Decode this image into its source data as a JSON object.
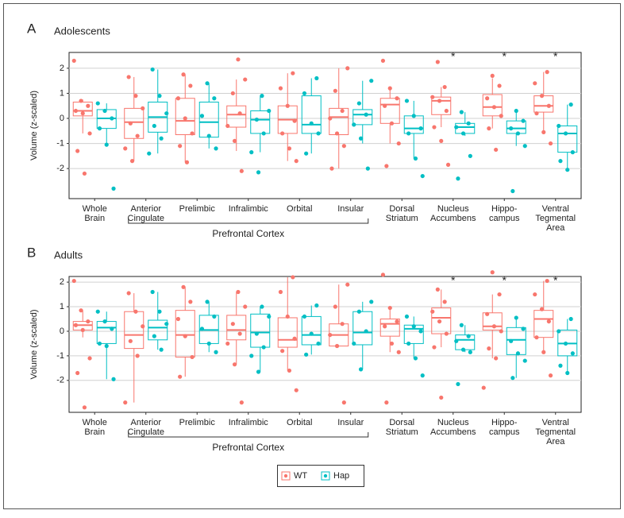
{
  "chart_data": [
    {
      "type": "box",
      "panel": "A",
      "title": "Adolescents",
      "ylabel": "Volume (z-scaled)",
      "categories": [
        [
          "Whole",
          "Brain"
        ],
        [
          "Anterior",
          "Cingulate"
        ],
        [
          "Prelimbic"
        ],
        [
          "Infralimbic"
        ],
        [
          "Orbital"
        ],
        [
          "Insular"
        ],
        [
          "Dorsal",
          "Striatum"
        ],
        [
          "Nucleus",
          "Accumbens"
        ],
        [
          "Hippo-",
          "campus"
        ],
        [
          "Ventral",
          "Tegmental",
          "Area"
        ]
      ],
      "group": {
        "label": "Prefrontal Cortex",
        "from": 1,
        "to": 5
      },
      "significance": [
        null,
        null,
        null,
        null,
        null,
        null,
        null,
        "*",
        "*",
        "*"
      ],
      "ylim": [
        -3.2,
        2.63
      ],
      "yticks": [
        -2,
        -1,
        0,
        1,
        2
      ],
      "grid": true,
      "series": [
        {
          "name": "WT",
          "color": "#f8766d",
          "boxes": [
            {
              "min": -0.6,
              "q1": 0.1,
              "median": 0.3,
              "q3": 0.65,
              "max": 0.75
            },
            {
              "min": -1.7,
              "q1": -0.8,
              "median": -0.15,
              "q3": 0.4,
              "max": 1.65
            },
            {
              "min": -1.75,
              "q1": -0.65,
              "median": -0.1,
              "q3": 0.8,
              "max": 1.75
            },
            {
              "min": -1.3,
              "q1": -0.35,
              "median": 0.15,
              "q3": 0.5,
              "max": 1.55
            },
            {
              "min": -1.7,
              "q1": -0.6,
              "median": -0.05,
              "q3": 0.5,
              "max": 1.8
            },
            {
              "min": -2.0,
              "q1": -0.65,
              "median": 0.05,
              "q3": 0.4,
              "max": 2.0
            },
            {
              "min": -1.0,
              "q1": -0.2,
              "median": 0.55,
              "q3": 0.8,
              "max": 1.2
            },
            {
              "min": -0.35,
              "q1": 0.15,
              "median": 0.7,
              "q3": 0.85,
              "max": 1.25
            },
            {
              "min": -0.4,
              "q1": 0.1,
              "median": 0.45,
              "q3": 0.95,
              "max": 1.6
            },
            {
              "min": -0.55,
              "q1": 0.25,
              "median": 0.5,
              "q3": 0.9,
              "max": 1.85
            }
          ],
          "points": [
            [
              2.3,
              0.7,
              0.5,
              0.3,
              0.2,
              -0.6,
              -1.3,
              -2.2
            ],
            [
              1.65,
              0.9,
              0.4,
              -0.2,
              -0.7,
              -1.2,
              -1.7
            ],
            [
              1.75,
              1.3,
              0.8,
              0.0,
              -0.6,
              -1.1,
              -1.75
            ],
            [
              2.35,
              1.55,
              1.0,
              0.2,
              -0.3,
              -0.9,
              -2.1
            ],
            [
              1.8,
              1.2,
              0.5,
              -0.1,
              -0.6,
              -1.2,
              -1.7
            ],
            [
              2.0,
              1.1,
              0.3,
              0.0,
              -0.6,
              -1.1,
              -2.0
            ],
            [
              2.3,
              1.2,
              0.8,
              0.5,
              -0.2,
              -1.0,
              -1.9
            ],
            [
              2.25,
              1.25,
              0.85,
              0.7,
              0.3,
              -0.35,
              -0.9,
              -1.85
            ],
            [
              1.7,
              1.3,
              0.8,
              0.45,
              0.1,
              -0.4,
              -1.25
            ],
            [
              1.85,
              1.4,
              0.9,
              0.5,
              0.2,
              -0.55,
              -1.0
            ]
          ]
        },
        {
          "name": "Hap",
          "color": "#00bfc4",
          "boxes": [
            {
              "min": -1.05,
              "q1": -0.4,
              "median": 0.0,
              "q3": 0.35,
              "max": 0.6
            },
            {
              "min": -1.4,
              "q1": -0.55,
              "median": 0.05,
              "q3": 0.65,
              "max": 1.95
            },
            {
              "min": -1.2,
              "q1": -0.75,
              "median": -0.15,
              "q3": 0.65,
              "max": 1.4
            },
            {
              "min": -1.35,
              "q1": -0.6,
              "median": -0.05,
              "q3": 0.3,
              "max": 0.9
            },
            {
              "min": -1.4,
              "q1": -0.6,
              "median": -0.25,
              "q3": 0.9,
              "max": 1.6
            },
            {
              "min": -1.0,
              "q1": -0.25,
              "median": 0.15,
              "q3": 0.35,
              "max": 1.5
            },
            {
              "min": -1.6,
              "q1": -0.6,
              "median": -0.4,
              "q3": 0.1,
              "max": 0.7
            },
            {
              "min": -0.7,
              "q1": -0.6,
              "median": -0.35,
              "q3": -0.2,
              "max": 0.25
            },
            {
              "min": -1.1,
              "q1": -0.6,
              "median": -0.4,
              "q3": -0.1,
              "max": 0.3
            },
            {
              "min": -2.05,
              "q1": -1.35,
              "median": -0.6,
              "q3": -0.3,
              "max": 0.55
            }
          ],
          "points": [
            [
              0.6,
              0.3,
              0.0,
              -0.4,
              -1.05,
              -2.8
            ],
            [
              1.95,
              0.9,
              0.2,
              -0.3,
              -0.8,
              -1.4
            ],
            [
              1.4,
              0.8,
              0.1,
              -0.7,
              -1.2
            ],
            [
              0.9,
              0.3,
              -0.05,
              -0.6,
              -1.35,
              -2.15
            ],
            [
              1.6,
              1.0,
              -0.2,
              -0.6,
              -1.4
            ],
            [
              1.5,
              0.6,
              0.15,
              -0.25,
              -0.8,
              -2.0
            ],
            [
              0.7,
              0.1,
              -0.4,
              -0.6,
              -1.6,
              -2.3
            ],
            [
              0.25,
              -0.2,
              -0.35,
              -0.6,
              -1.5,
              -2.4
            ],
            [
              0.3,
              -0.1,
              -0.4,
              -0.6,
              -1.1,
              -2.9
            ],
            [
              0.55,
              -0.3,
              -0.6,
              -1.35,
              -1.7,
              -2.05
            ]
          ]
        }
      ]
    },
    {
      "type": "box",
      "panel": "B",
      "title": "Adults",
      "ylabel": "Volume (z-scaled)",
      "categories": [
        [
          "Whole",
          "Brain"
        ],
        [
          "Anterior",
          "Cingulate"
        ],
        [
          "Prelimbic"
        ],
        [
          "Infralimbic"
        ],
        [
          "Orbital"
        ],
        [
          "Insular"
        ],
        [
          "Dorsal",
          "Striatum"
        ],
        [
          "Nucleus",
          "Accumbens"
        ],
        [
          "Hippo-",
          "campus"
        ],
        [
          "Ventral",
          "Tegmental",
          "Area"
        ]
      ],
      "group": {
        "label": "Prefrontal Cortex",
        "from": 1,
        "to": 5
      },
      "significance": [
        null,
        null,
        null,
        null,
        null,
        null,
        null,
        "*",
        "*",
        "*"
      ],
      "ylim": [
        -3.3,
        2.23
      ],
      "yticks": [
        -2,
        -1,
        0,
        1,
        2
      ],
      "grid": true,
      "series": [
        {
          "name": "WT",
          "color": "#f8766d",
          "boxes": [
            {
              "min": -0.25,
              "q1": 0.05,
              "median": 0.25,
              "q3": 0.4,
              "max": 0.85
            },
            {
              "min": -2.9,
              "q1": -0.7,
              "median": -0.15,
              "q3": 0.8,
              "max": 1.55
            },
            {
              "min": -1.85,
              "q1": -1.05,
              "median": -0.15,
              "q3": 0.85,
              "max": 1.8
            },
            {
              "min": -1.35,
              "q1": -0.35,
              "median": 0.05,
              "q3": 0.65,
              "max": 1.6
            },
            {
              "min": -1.6,
              "q1": -0.65,
              "median": -0.35,
              "q3": 0.55,
              "max": 2.2
            },
            {
              "min": -0.6,
              "q1": -0.6,
              "median": -0.15,
              "q3": 0.3,
              "max": 1.9
            },
            {
              "min": -0.85,
              "q1": -0.2,
              "median": 0.3,
              "q3": 0.5,
              "max": 0.95
            },
            {
              "min": -0.65,
              "q1": -0.1,
              "median": 0.55,
              "q3": 0.95,
              "max": 1.7
            },
            {
              "min": -1.1,
              "q1": 0.05,
              "median": 0.2,
              "q3": 0.75,
              "max": 1.5
            },
            {
              "min": -0.85,
              "q1": -0.25,
              "median": 0.5,
              "q3": 0.85,
              "max": 2.05
            }
          ],
          "points": [
            [
              2.05,
              0.85,
              0.4,
              0.25,
              0.05,
              -1.1,
              -1.7,
              -3.1
            ],
            [
              1.55,
              0.8,
              0.2,
              -0.4,
              -1.0,
              -2.9
            ],
            [
              1.8,
              1.2,
              0.5,
              -0.2,
              -1.05,
              -1.85
            ],
            [
              1.6,
              1.0,
              0.3,
              -0.1,
              -0.5,
              -1.35,
              -2.9
            ],
            [
              2.2,
              1.6,
              0.6,
              -0.3,
              -0.8,
              -1.6,
              -2.4
            ],
            [
              1.9,
              1.0,
              0.3,
              -0.15,
              -0.6,
              -2.9
            ],
            [
              2.3,
              0.95,
              0.4,
              0.2,
              -0.5,
              -0.85,
              -2.9
            ],
            [
              1.7,
              1.2,
              0.8,
              0.4,
              -0.1,
              -0.65,
              -2.7
            ],
            [
              2.4,
              1.5,
              0.7,
              0.2,
              0.0,
              -0.7,
              -1.1,
              -2.3
            ],
            [
              2.05,
              1.5,
              0.9,
              0.4,
              -0.25,
              -0.85,
              -1.8
            ]
          ]
        },
        {
          "name": "Hap",
          "color": "#00bfc4",
          "boxes": [
            {
              "min": -1.95,
              "q1": -0.5,
              "median": 0.15,
              "q3": 0.4,
              "max": 0.8
            },
            {
              "min": -0.75,
              "q1": -0.35,
              "median": 0.15,
              "q3": 0.45,
              "max": 1.6
            },
            {
              "min": -0.85,
              "q1": -0.5,
              "median": 0.05,
              "q3": 0.65,
              "max": 1.2
            },
            {
              "min": -1.65,
              "q1": -0.65,
              "median": -0.05,
              "q3": 0.7,
              "max": 1.0
            },
            {
              "min": -0.95,
              "q1": -0.55,
              "median": -0.15,
              "q3": 0.6,
              "max": 1.05
            },
            {
              "min": -1.55,
              "q1": -0.55,
              "median": -0.05,
              "q3": 0.8,
              "max": 1.2
            },
            {
              "min": -1.1,
              "q1": -0.5,
              "median": 0.1,
              "q3": 0.25,
              "max": 0.6
            },
            {
              "min": -0.85,
              "q1": -0.75,
              "median": -0.35,
              "q3": -0.15,
              "max": 0.25
            },
            {
              "min": -1.9,
              "q1": -0.95,
              "median": -0.35,
              "q3": 0.15,
              "max": 0.55
            },
            {
              "min": -1.7,
              "q1": -1.0,
              "median": -0.5,
              "q3": 0.05,
              "max": 0.5
            }
          ],
          "points": [
            [
              0.8,
              0.4,
              0.1,
              -0.5,
              -0.6,
              -1.95
            ],
            [
              1.6,
              0.8,
              0.3,
              -0.2,
              -0.75
            ],
            [
              1.2,
              0.6,
              0.1,
              -0.5,
              -0.85
            ],
            [
              1.0,
              0.6,
              -0.1,
              -0.65,
              -1.0,
              -1.65
            ],
            [
              1.05,
              0.6,
              -0.1,
              -0.5,
              -0.95
            ],
            [
              1.2,
              0.8,
              0.0,
              -0.5,
              -1.55
            ],
            [
              0.6,
              0.2,
              0.0,
              -0.5,
              -1.1,
              -1.8
            ],
            [
              0.25,
              -0.2,
              -0.4,
              -0.75,
              -0.85,
              -2.15
            ],
            [
              0.55,
              0.1,
              -0.4,
              -0.9,
              -1.2,
              -1.9
            ],
            [
              0.5,
              0.0,
              -0.5,
              -0.9,
              -1.4,
              -1.7
            ]
          ]
        }
      ]
    }
  ]
}
